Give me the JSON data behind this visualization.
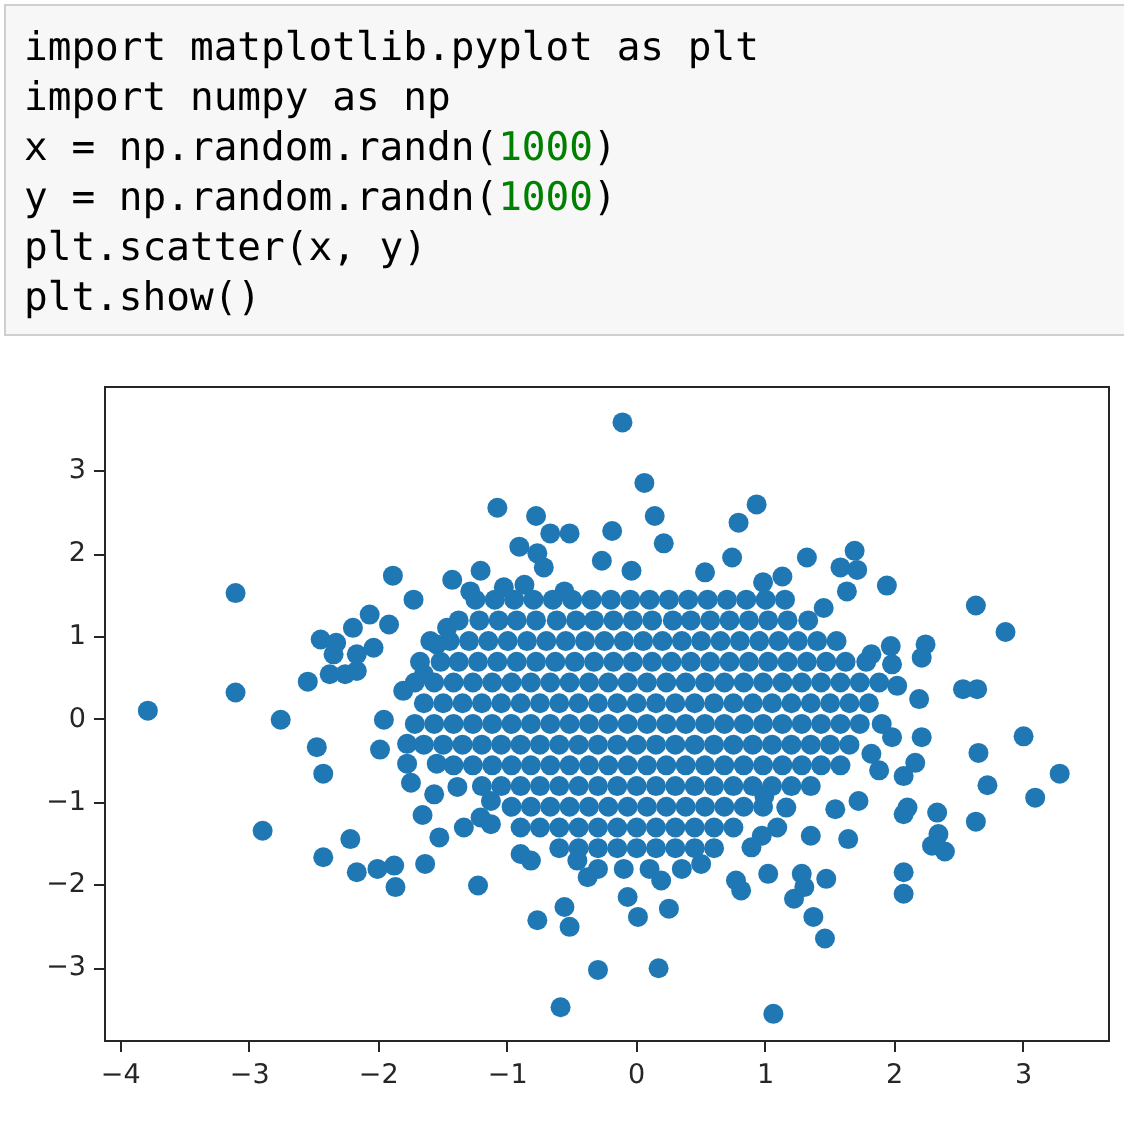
{
  "chart_data": {
    "type": "scatter",
    "annotations": [
      "import matplotlib.pyplot as plt",
      "import numpy as np",
      "x = np.random.randn(1000)",
      "y = np.random.randn(1000)",
      "plt.scatter(x, y)",
      "plt.show()"
    ],
    "color": "#1f77b4",
    "marker": "circle",
    "xlim": [
      -4.13,
      3.67
    ],
    "ylim": [
      -3.89,
      4.03
    ],
    "xticks": [
      {
        "value": -4,
        "label": "−4"
      },
      {
        "value": -3,
        "label": "−3"
      },
      {
        "value": -2,
        "label": "−2"
      },
      {
        "value": -1,
        "label": "−1"
      },
      0,
      1,
      2,
      3
    ],
    "yticks": [
      {
        "value": -3,
        "label": "−3"
      },
      {
        "value": -2,
        "label": "−2"
      },
      {
        "value": -1,
        "label": "−1"
      },
      0,
      1,
      2,
      3
    ],
    "x": [
      -3.79,
      -3.11,
      -3.11,
      -2.76,
      -2.55,
      -2.45,
      -2.33,
      -2.35,
      -2.38,
      -2.26,
      -2.17,
      -2.17,
      -2.2,
      -2.07,
      -2.04,
      -1.92,
      -1.89,
      -1.73,
      -1.96,
      -1.81,
      -1.65,
      -1.55,
      -1.47,
      -1.43,
      -1.21,
      -1.08,
      -0.91,
      -0.78,
      -0.67,
      -0.52,
      -0.77,
      -0.72,
      -0.27,
      -1.29,
      -1.03,
      -0.87,
      -0.56,
      -0.11,
      0.06,
      0.14,
      0.21,
      -0.19,
      -0.04,
      0.93,
      0.79,
      0.74,
      0.53,
      0.98,
      1.13,
      1.32,
      1.58,
      1.69,
      1.71,
      1.63,
      1.94,
      2.63,
      2.86,
      1.45,
      1.82,
      1.97,
      2.24,
      2.21,
      1.98,
      2.02,
      2.19,
      2.53,
      2.64,
      3.0,
      -2.48,
      -2.43,
      -1.99,
      -2.9,
      -2.43,
      -2.22,
      -2.17,
      -2.01,
      -1.88,
      -1.87,
      -1.64,
      -1.66,
      -1.53,
      -1.57,
      -1.75,
      -1.78,
      -1.78,
      -1.55,
      -1.39,
      -1.34,
      -1.21,
      -1.13,
      -1.13,
      -1.23,
      -0.9,
      -0.82,
      -0.77,
      -0.56,
      -0.52,
      -0.59,
      -0.3,
      -0.38,
      0.17,
      1.06,
      0.01,
      0.25,
      1.37,
      1.46,
      1.22,
      1.3,
      1.28,
      1.47,
      1.02,
      0.77,
      0.81,
      1.35,
      1.09,
      1.16,
      1.64,
      1.54,
      1.72,
      2.07,
      2.07,
      2.07,
      2.1,
      2.29,
      2.39,
      2.34,
      2.33,
      2.63,
      2.72,
      2.65,
      3.28,
      3.09,
      2.21,
      2.16,
      2.07,
      1.88,
      1.82,
      1.98,
      0.99,
      0.5,
      0.19,
      -0.07,
      -0.46,
      0.89,
      0.97,
      -1.25,
      -1.1,
      -0.95,
      -0.8,
      -0.65,
      -0.5,
      -0.35,
      -0.2,
      -0.05,
      0.1,
      0.25,
      0.4,
      0.55,
      0.7,
      0.85,
      1.0,
      1.15,
      -1.38,
      -1.22,
      -1.07,
      -0.93,
      -0.78,
      -0.62,
      -0.47,
      -0.33,
      -0.18,
      -0.03,
      0.12,
      0.28,
      0.42,
      0.57,
      0.72,
      0.87,
      1.02,
      1.17,
      1.33,
      -1.6,
      -1.45,
      -1.3,
      -1.15,
      -1.0,
      -0.85,
      -0.7,
      -0.55,
      -0.4,
      -0.25,
      -0.1,
      0.05,
      0.2,
      0.35,
      0.5,
      0.65,
      0.8,
      0.95,
      1.1,
      1.25,
      1.4,
      1.55,
      -1.68,
      -1.52,
      -1.38,
      -1.23,
      -1.08,
      -0.93,
      -0.78,
      -0.63,
      -0.48,
      -0.33,
      -0.18,
      -0.03,
      0.12,
      0.27,
      0.42,
      0.57,
      0.72,
      0.87,
      1.02,
      1.17,
      1.32,
      1.47,
      1.62,
      1.78,
      -1.72,
      -1.57,
      -1.42,
      -1.27,
      -1.12,
      -0.97,
      -0.82,
      -0.67,
      -0.52,
      -0.37,
      -0.22,
      -0.07,
      0.08,
      0.23,
      0.38,
      0.53,
      0.68,
      0.83,
      0.98,
      1.13,
      1.28,
      1.43,
      1.58,
      1.73,
      1.88,
      -1.65,
      -1.5,
      -1.35,
      -1.2,
      -1.05,
      -0.9,
      -0.75,
      -0.6,
      -0.45,
      -0.3,
      -0.15,
      0.0,
      0.15,
      0.3,
      0.45,
      0.6,
      0.75,
      0.9,
      1.05,
      1.2,
      1.35,
      1.5,
      1.65,
      1.8,
      -1.72,
      -1.57,
      -1.42,
      -1.27,
      -1.12,
      -0.97,
      -0.82,
      -0.67,
      -0.52,
      -0.37,
      -0.22,
      -0.07,
      0.08,
      0.23,
      0.38,
      0.53,
      0.68,
      0.83,
      0.98,
      1.13,
      1.28,
      1.43,
      1.58,
      1.73,
      1.9,
      -1.65,
      -1.5,
      -1.35,
      -1.2,
      -1.05,
      -0.9,
      -0.75,
      -0.6,
      -0.45,
      -0.3,
      -0.15,
      0.0,
      0.15,
      0.3,
      0.45,
      0.6,
      0.75,
      0.9,
      1.05,
      1.2,
      1.35,
      1.5,
      1.65,
      -1.42,
      -1.27,
      -1.12,
      -0.97,
      -0.82,
      -0.67,
      -0.52,
      -0.37,
      -0.22,
      -0.07,
      0.08,
      0.23,
      0.38,
      0.53,
      0.68,
      0.83,
      0.98,
      1.13,
      1.28,
      1.43,
      1.58,
      -1.2,
      -1.05,
      -0.9,
      -0.75,
      -0.6,
      -0.45,
      -0.3,
      -0.15,
      0.0,
      0.15,
      0.3,
      0.45,
      0.6,
      0.75,
      0.9,
      1.05,
      1.2,
      1.35,
      -0.97,
      -0.82,
      -0.67,
      -0.52,
      -0.37,
      -0.22,
      -0.07,
      0.08,
      0.23,
      0.38,
      0.53,
      0.68,
      0.83,
      0.98,
      -0.9,
      -0.75,
      -0.6,
      -0.45,
      -0.3,
      -0.15,
      0.0,
      0.15,
      0.3,
      0.45,
      0.6,
      0.75,
      -0.6,
      -0.45,
      -0.3,
      -0.15,
      0.0,
      0.15,
      0.3,
      0.45,
      0.6,
      -0.3,
      -0.1,
      0.1,
      0.35
    ],
    "values": [
      0.11,
      1.53,
      0.33,
      0.0,
      0.46,
      0.97,
      0.93,
      0.79,
      0.55,
      0.55,
      0.59,
      0.79,
      1.11,
      1.27,
      0.87,
      1.15,
      1.74,
      1.45,
      0.0,
      0.35,
      0.55,
      0.91,
      1.11,
      1.69,
      1.8,
      2.56,
      2.09,
      2.46,
      2.25,
      2.25,
      2.01,
      1.84,
      1.92,
      1.55,
      1.6,
      1.63,
      1.55,
      3.59,
      2.86,
      2.46,
      2.13,
      2.28,
      1.8,
      2.6,
      2.38,
      1.96,
      1.78,
      1.66,
      1.73,
      1.96,
      1.84,
      2.04,
      1.81,
      1.55,
      1.62,
      1.38,
      1.06,
      1.35,
      0.79,
      0.89,
      0.91,
      0.75,
      0.67,
      0.41,
      0.25,
      0.37,
      0.37,
      -0.2,
      -0.33,
      -0.65,
      -0.36,
      -1.34,
      -1.66,
      -1.44,
      -1.84,
      -1.8,
      -1.76,
      -2.02,
      -1.74,
      -1.15,
      -1.42,
      -0.9,
      -0.76,
      -0.53,
      -0.29,
      -0.53,
      -0.81,
      -1.3,
      -1.18,
      -1.26,
      -0.98,
      -2.0,
      -1.62,
      -1.7,
      -2.42,
      -2.26,
      -2.5,
      -3.47,
      -3.02,
      -1.9,
      -3.0,
      -3.55,
      -2.38,
      -2.28,
      -2.38,
      -2.64,
      -2.16,
      -2.02,
      -1.86,
      -1.92,
      -1.86,
      -1.94,
      -2.06,
      -1.4,
      -1.3,
      -1.06,
      -1.44,
      -1.08,
      -0.98,
      -1.84,
      -2.1,
      -1.14,
      -1.06,
      -1.52,
      -1.59,
      -1.38,
      -1.12,
      -1.23,
      -0.79,
      -0.4,
      -0.65,
      -0.94,
      -0.21,
      -0.52,
      -0.68,
      -0.61,
      -0.41,
      -0.21,
      -0.92,
      -1.74,
      -1.94,
      -2.14,
      -1.7,
      -1.54,
      -1.4,
      1.45,
      1.45,
      1.45,
      1.45,
      1.45,
      1.45,
      1.45,
      1.45,
      1.45,
      1.45,
      1.45,
      1.45,
      1.45,
      1.45,
      1.45,
      1.45,
      1.45,
      1.2,
      1.2,
      1.2,
      1.2,
      1.2,
      1.2,
      1.2,
      1.2,
      1.2,
      1.2,
      1.2,
      1.2,
      1.2,
      1.2,
      1.2,
      1.2,
      1.2,
      1.2,
      1.2,
      0.95,
      0.95,
      0.95,
      0.95,
      0.95,
      0.95,
      0.95,
      0.95,
      0.95,
      0.95,
      0.95,
      0.95,
      0.95,
      0.95,
      0.95,
      0.95,
      0.95,
      0.95,
      0.95,
      0.95,
      0.95,
      0.95,
      0.7,
      0.7,
      0.7,
      0.7,
      0.7,
      0.7,
      0.7,
      0.7,
      0.7,
      0.7,
      0.7,
      0.7,
      0.7,
      0.7,
      0.7,
      0.7,
      0.7,
      0.7,
      0.7,
      0.7,
      0.7,
      0.7,
      0.7,
      0.7,
      0.45,
      0.45,
      0.45,
      0.45,
      0.45,
      0.45,
      0.45,
      0.45,
      0.45,
      0.45,
      0.45,
      0.45,
      0.45,
      0.45,
      0.45,
      0.45,
      0.45,
      0.45,
      0.45,
      0.45,
      0.45,
      0.45,
      0.45,
      0.45,
      0.45,
      0.2,
      0.2,
      0.2,
      0.2,
      0.2,
      0.2,
      0.2,
      0.2,
      0.2,
      0.2,
      0.2,
      0.2,
      0.2,
      0.2,
      0.2,
      0.2,
      0.2,
      0.2,
      0.2,
      0.2,
      0.2,
      0.2,
      0.2,
      0.2,
      -0.05,
      -0.05,
      -0.05,
      -0.05,
      -0.05,
      -0.05,
      -0.05,
      -0.05,
      -0.05,
      -0.05,
      -0.05,
      -0.05,
      -0.05,
      -0.05,
      -0.05,
      -0.05,
      -0.05,
      -0.05,
      -0.05,
      -0.05,
      -0.05,
      -0.05,
      -0.05,
      -0.05,
      -0.05,
      -0.3,
      -0.3,
      -0.3,
      -0.3,
      -0.3,
      -0.3,
      -0.3,
      -0.3,
      -0.3,
      -0.3,
      -0.3,
      -0.3,
      -0.3,
      -0.3,
      -0.3,
      -0.3,
      -0.3,
      -0.3,
      -0.3,
      -0.3,
      -0.3,
      -0.3,
      -0.3,
      -0.55,
      -0.55,
      -0.55,
      -0.55,
      -0.55,
      -0.55,
      -0.55,
      -0.55,
      -0.55,
      -0.55,
      -0.55,
      -0.55,
      -0.55,
      -0.55,
      -0.55,
      -0.55,
      -0.55,
      -0.55,
      -0.55,
      -0.55,
      -0.55,
      -0.8,
      -0.8,
      -0.8,
      -0.8,
      -0.8,
      -0.8,
      -0.8,
      -0.8,
      -0.8,
      -0.8,
      -0.8,
      -0.8,
      -0.8,
      -0.8,
      -0.8,
      -0.8,
      -0.8,
      -0.8,
      -1.05,
      -1.05,
      -1.05,
      -1.05,
      -1.05,
      -1.05,
      -1.05,
      -1.05,
      -1.05,
      -1.05,
      -1.05,
      -1.05,
      -1.05,
      -1.05,
      -1.3,
      -1.3,
      -1.3,
      -1.3,
      -1.3,
      -1.3,
      -1.3,
      -1.3,
      -1.3,
      -1.3,
      -1.3,
      -1.3,
      -1.55,
      -1.55,
      -1.55,
      -1.55,
      -1.55,
      -1.55,
      -1.55,
      -1.55,
      -1.55,
      -1.8,
      -1.8,
      -1.8,
      -1.8
    ]
  }
}
